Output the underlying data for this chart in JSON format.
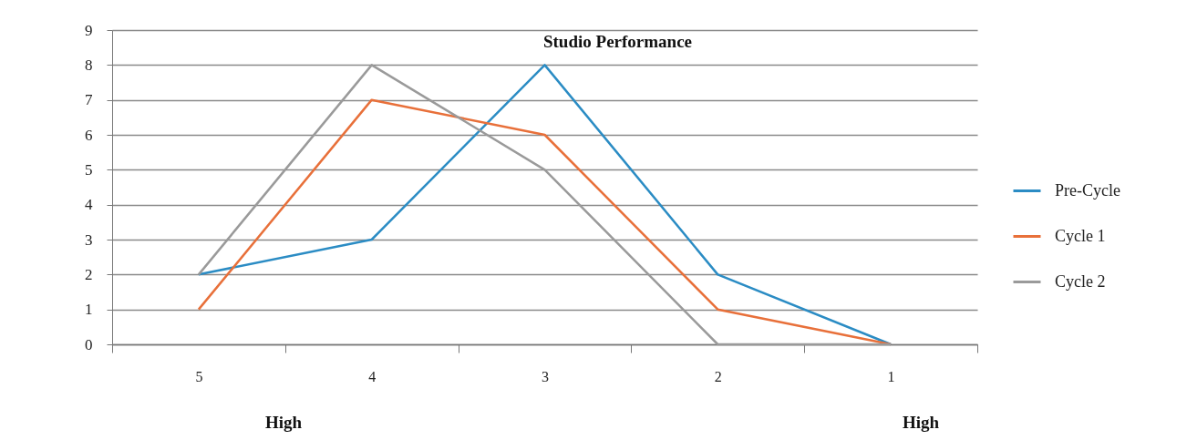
{
  "chart_data": {
    "type": "line",
    "title": "Studio Performance",
    "categories": [
      "5",
      "4",
      "3",
      "2",
      "1"
    ],
    "series": [
      {
        "name": "Pre-Cycle",
        "color": "#2b8cc4",
        "values": [
          2,
          3,
          8,
          2,
          0
        ]
      },
      {
        "name": "Cycle 1",
        "color": "#e8703a",
        "values": [
          1,
          7,
          6,
          1,
          0
        ]
      },
      {
        "name": "Cycle 2",
        "color": "#9a9a9a",
        "values": [
          2,
          8,
          5,
          0,
          0
        ]
      }
    ],
    "ylim": [
      0,
      9
    ],
    "yticks": [
      0,
      1,
      2,
      3,
      4,
      5,
      6,
      7,
      8,
      9
    ],
    "grid": "y",
    "legend": "right",
    "marker": "none",
    "line_style": "solid",
    "annotations": [
      "High",
      "High"
    ]
  }
}
